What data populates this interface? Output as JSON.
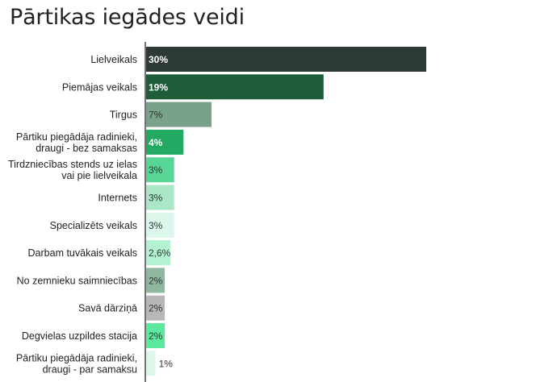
{
  "chart_data": {
    "type": "bar",
    "orientation": "horizontal",
    "title": "Pārtikas iegādes veidi",
    "xlabel": "",
    "ylabel": "",
    "xlim": [
      0,
      30
    ],
    "grid": false,
    "legend": "none",
    "categories": [
      [
        "Lielveikals"
      ],
      [
        "Piemājas veikals"
      ],
      [
        "Tirgus"
      ],
      [
        "Pārtiku piegādāja radinieki,",
        "draugi - bez samaksas"
      ],
      [
        "Tirdzniecības stends uz ielas",
        "vai pie lielveikala"
      ],
      [
        "Internets"
      ],
      [
        "Specializēts veikals"
      ],
      [
        "Darbam tuvākais veikals"
      ],
      [
        "No zemnieku saimniecības"
      ],
      [
        "Savā dārziņā"
      ],
      [
        "Degvielas uzpildes stacija"
      ],
      [
        "Pārtiku piegādāja radinieki,",
        "draugi - par samaksu"
      ]
    ],
    "values": [
      30,
      19,
      7,
      4,
      3,
      3,
      3,
      2.6,
      2,
      2,
      2,
      1
    ],
    "value_labels": [
      "30%",
      "19%",
      "7%",
      "4%",
      "3%",
      "3%",
      "3%",
      "2,6%",
      "2%",
      "2%",
      "2%",
      "1%"
    ],
    "colors": [
      "#2d3a33",
      "#1d5e38",
      "#7aa28a",
      "#22aa62",
      "#58d696",
      "#a9e7c7",
      "#dbf8ea",
      "#b2f2d2",
      "#8fb8a0",
      "#b7b7b7",
      "#5ce89d",
      "#dbf8ea"
    ],
    "label_colors": [
      "#ffffff",
      "#ffffff",
      "#333333",
      "#ffffff",
      "#333333",
      "#333333",
      "#333333",
      "#333333",
      "#333333",
      "#333333",
      "#333333",
      "#333333"
    ]
  }
}
